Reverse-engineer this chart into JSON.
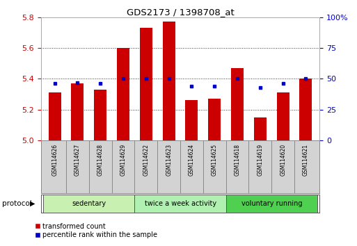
{
  "title": "GDS2173 / 1398708_at",
  "samples": [
    "GSM114626",
    "GSM114627",
    "GSM114628",
    "GSM114629",
    "GSM114622",
    "GSM114623",
    "GSM114624",
    "GSM114625",
    "GSM114618",
    "GSM114619",
    "GSM114620",
    "GSM114621"
  ],
  "red_values": [
    5.31,
    5.37,
    5.33,
    5.6,
    5.73,
    5.77,
    5.26,
    5.27,
    5.47,
    5.15,
    5.31,
    5.4
  ],
  "blue_values": [
    46,
    47,
    46,
    50,
    50,
    50,
    44,
    44,
    50,
    43,
    46,
    50
  ],
  "groups": [
    {
      "label": "sedentary",
      "start": 0,
      "end": 3,
      "color": "#c8f0b0"
    },
    {
      "label": "twice a week activity",
      "start": 4,
      "end": 7,
      "color": "#b0f0b0"
    },
    {
      "label": "voluntary running",
      "start": 8,
      "end": 11,
      "color": "#50d050"
    }
  ],
  "ylim_left": [
    5.0,
    5.8
  ],
  "ylim_right": [
    0,
    100
  ],
  "bar_color": "#cc0000",
  "dot_color": "#0000cc",
  "bar_width": 0.55,
  "background_color": "#ffffff",
  "plot_bg": "#ffffff",
  "grid_color": "#000000",
  "left_tick_color": "#cc0000",
  "right_tick_color": "#0000cc",
  "legend_items": [
    {
      "label": "transformed count",
      "color": "#cc0000"
    },
    {
      "label": "percentile rank within the sample",
      "color": "#0000cc"
    }
  ],
  "protocol_label": "protocol"
}
